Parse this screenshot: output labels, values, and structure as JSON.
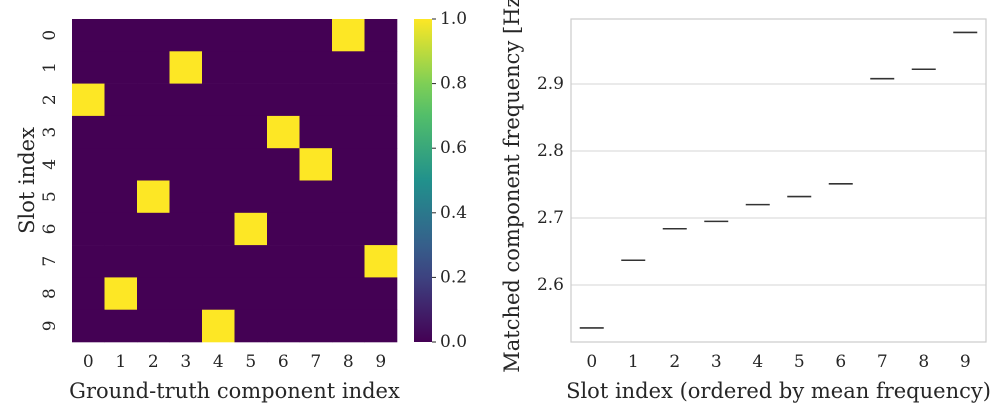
{
  "colors": {
    "viridis_low": "#440154",
    "viridis_high": "#fde725",
    "grid": "#d4d4d4",
    "frame": "#cccccc",
    "text": "#262626",
    "marker": "#333333"
  },
  "chart_data": [
    {
      "type": "heatmap",
      "title": "",
      "xlabel": "Ground-truth component index",
      "ylabel": "Slot index",
      "x_categories": [
        "0",
        "1",
        "2",
        "3",
        "4",
        "5",
        "6",
        "7",
        "8",
        "9"
      ],
      "y_categories": [
        "0",
        "1",
        "2",
        "3",
        "4",
        "5",
        "6",
        "7",
        "8",
        "9"
      ],
      "matrix": [
        [
          0,
          0,
          0,
          0,
          0,
          0,
          0,
          0,
          1,
          0
        ],
        [
          0,
          0,
          0,
          1,
          0,
          0,
          0,
          0,
          0,
          0
        ],
        [
          1,
          0,
          0,
          0,
          0,
          0,
          0,
          0,
          0,
          0
        ],
        [
          0,
          0,
          0,
          0,
          0,
          0,
          1,
          0,
          0,
          0
        ],
        [
          0,
          0,
          0,
          0,
          0,
          0,
          0,
          1,
          0,
          0
        ],
        [
          0,
          0,
          1,
          0,
          0,
          0,
          0,
          0,
          0,
          0
        ],
        [
          0,
          0,
          0,
          0,
          0,
          1,
          0,
          0,
          0,
          0
        ],
        [
          0,
          0,
          0,
          0,
          0,
          0,
          0,
          0,
          0,
          1
        ],
        [
          0,
          1,
          0,
          0,
          0,
          0,
          0,
          0,
          0,
          0
        ],
        [
          0,
          0,
          0,
          0,
          1,
          0,
          0,
          0,
          0,
          0
        ]
      ],
      "colormap": "viridis",
      "colorbar": {
        "range": [
          0.0,
          1.0
        ],
        "ticks": [
          "0.0",
          "0.2",
          "0.4",
          "0.6",
          "0.8",
          "1.0"
        ]
      }
    },
    {
      "type": "scatter",
      "marker": "horizontal line",
      "title": "",
      "xlabel": "Slot index (ordered by mean frequency)",
      "ylabel": "Matched component frequency [Hz]",
      "categories": [
        "0",
        "1",
        "2",
        "3",
        "4",
        "5",
        "6",
        "7",
        "8",
        "9"
      ],
      "values": [
        2.536,
        2.637,
        2.684,
        2.695,
        2.72,
        2.732,
        2.751,
        2.908,
        2.922,
        2.977
      ],
      "ylim": [
        2.515,
        2.997
      ],
      "yticks": [
        "2.6",
        "2.7",
        "2.8",
        "2.9"
      ],
      "grid": "horizontal"
    }
  ]
}
